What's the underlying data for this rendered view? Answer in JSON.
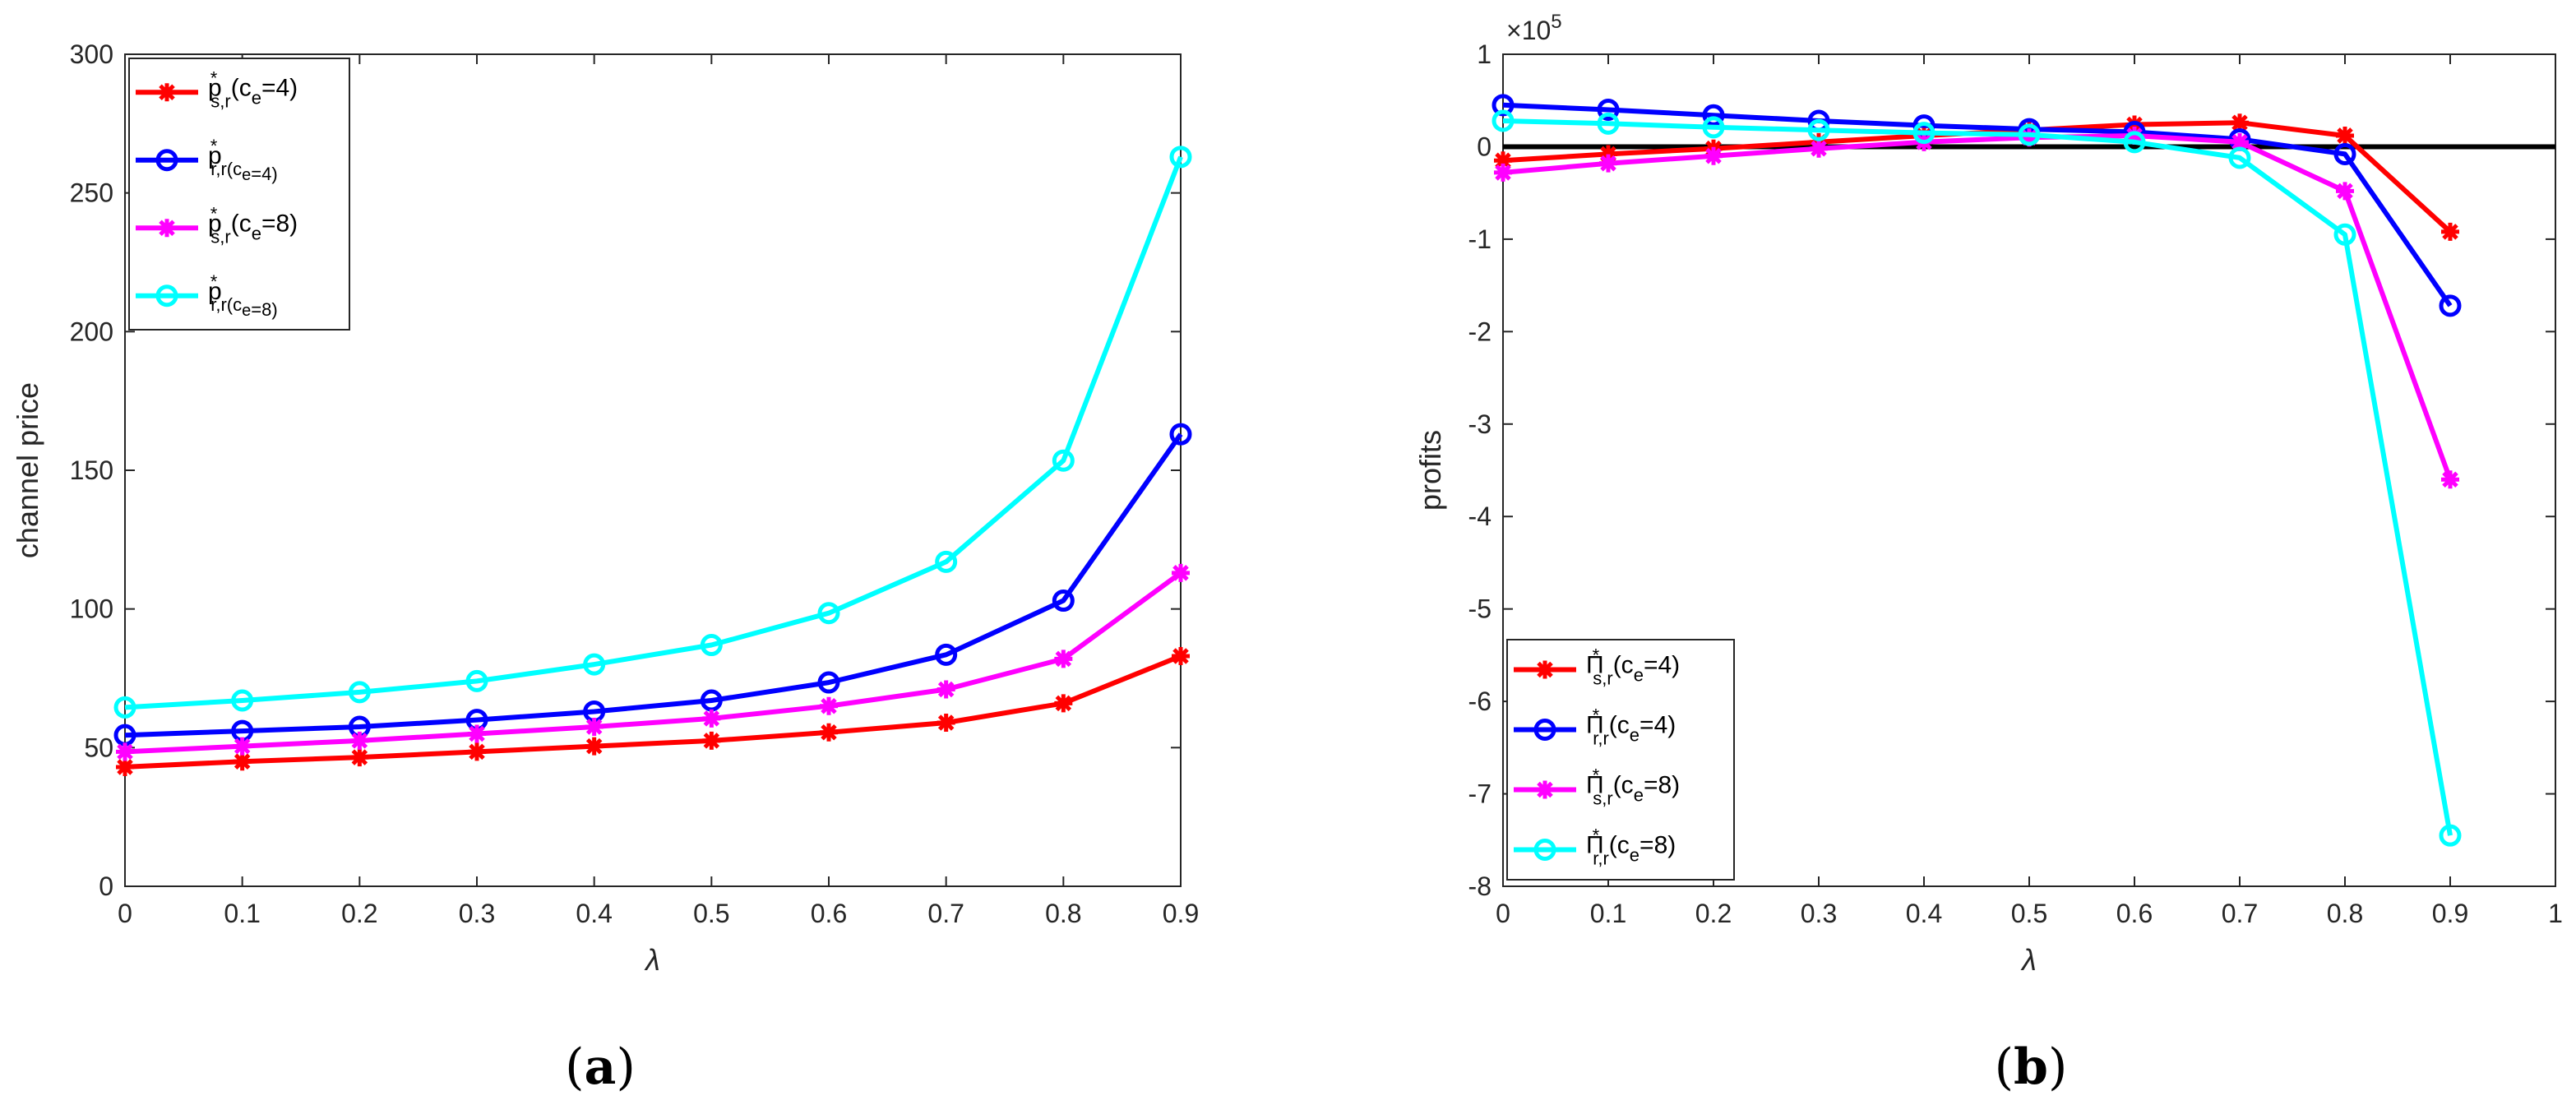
{
  "chart_data": [
    {
      "type": "line",
      "panel": "(a)",
      "panel_parts": {
        "open": "(",
        "letter": "a",
        "close": ")"
      },
      "xlabel": "λ",
      "ylabel": "channel price",
      "x": [
        0,
        0.1,
        0.2,
        0.3,
        0.4,
        0.5,
        0.6,
        0.7,
        0.8,
        0.9
      ],
      "xlim": [
        0,
        0.9
      ],
      "ylim": [
        0,
        300
      ],
      "xticks": [
        "0",
        "0.1",
        "0.2",
        "0.3",
        "0.4",
        "0.5",
        "0.6",
        "0.7",
        "0.8",
        "0.9"
      ],
      "yticks": [
        "0",
        "50",
        "100",
        "150",
        "200",
        "250",
        "300"
      ],
      "legend_location": "top-left",
      "series": [
        {
          "name": "p*s,r(ce=4)",
          "label": {
            "sym": "p",
            "sup": "*",
            "sub": "s,r",
            "rest": "(c",
            "sub2": "e",
            "tail": "=4)"
          },
          "color": "#ff0000",
          "marker": "asterisk",
          "values": [
            43,
            45,
            46.5,
            48.5,
            50.5,
            52.5,
            55.5,
            59,
            66,
            83
          ]
        },
        {
          "name": "p*r,r(ce=4)",
          "label": {
            "sym": "p",
            "sup": "*",
            "sub": "r,r(c",
            "sub2": "e",
            "tail": "=4)"
          },
          "color": "#0000ff",
          "marker": "circle",
          "values": [
            54.5,
            56,
            57.5,
            60,
            63,
            67,
            73.5,
            83.5,
            103,
            163
          ]
        },
        {
          "name": "p*s,r(ce=8)",
          "label": {
            "sym": "p",
            "sup": "*",
            "sub": "s,r",
            "rest": "(c",
            "sub2": "e",
            "tail": "=8)"
          },
          "color": "#ff00ff",
          "marker": "asterisk",
          "values": [
            48.5,
            50.5,
            52.5,
            55,
            57.5,
            60.5,
            65,
            71,
            82,
            113
          ]
        },
        {
          "name": "p*r,r(ce=8)",
          "label": {
            "sym": "p",
            "sup": "*",
            "sub": "r,r(c",
            "sub2": "e",
            "tail": "=8)"
          },
          "color": "#00ffff",
          "marker": "circle",
          "values": [
            64.5,
            67,
            70,
            74,
            80,
            87,
            98.5,
            117,
            153.5,
            263
          ]
        }
      ]
    },
    {
      "type": "line",
      "panel": "(b)",
      "panel_parts": {
        "open": "(",
        "letter": "b",
        "close": ")"
      },
      "xlabel": "λ",
      "ylabel": "profits",
      "multiplier": {
        "base": "×10",
        "exp": "5"
      },
      "x": [
        0,
        0.1,
        0.2,
        0.3,
        0.4,
        0.5,
        0.6,
        0.7,
        0.8,
        0.9
      ],
      "xlim": [
        0,
        1
      ],
      "ylim": [
        -8,
        1
      ],
      "xticks": [
        "0",
        "0.1",
        "0.2",
        "0.3",
        "0.4",
        "0.5",
        "0.6",
        "0.7",
        "0.8",
        "0.9",
        "1"
      ],
      "yticks": [
        "-8",
        "-7",
        "-6",
        "-5",
        "-4",
        "-3",
        "-2",
        "-1",
        "0",
        "1"
      ],
      "reference_line": {
        "y": 0,
        "color": "#000000"
      },
      "legend_location": "bottom-left",
      "series": [
        {
          "name": "Π*s,r(ce=4)",
          "label": {
            "sym": "Π",
            "sup": "*",
            "sub": "s,r",
            "rest": "(c",
            "sub2": "e",
            "tail": "=4)"
          },
          "color": "#ff0000",
          "marker": "asterisk",
          "values": [
            -0.15,
            -0.08,
            -0.02,
            0.05,
            0.12,
            0.18,
            0.24,
            0.26,
            0.12,
            -0.92
          ]
        },
        {
          "name": "Π*r,r(ce=4)",
          "label": {
            "sym": "Π",
            "sup": "*",
            "sub": "r,r",
            "rest": "(c",
            "sub2": "e",
            "tail": "=4)"
          },
          "color": "#0000ff",
          "marker": "circle",
          "values": [
            0.45,
            0.4,
            0.34,
            0.28,
            0.23,
            0.19,
            0.16,
            0.08,
            -0.08,
            -1.72
          ]
        },
        {
          "name": "Π*s,r(ce=8)",
          "label": {
            "sym": "Π",
            "sup": "*",
            "sub": "s,r",
            "rest": "(c",
            "sub2": "e",
            "tail": "=8)"
          },
          "color": "#ff00ff",
          "marker": "asterisk",
          "values": [
            -0.28,
            -0.18,
            -0.1,
            -0.02,
            0.05,
            0.1,
            0.12,
            0.05,
            -0.48,
            -3.6
          ]
        },
        {
          "name": "Π*r,r(ce=8)",
          "label": {
            "sym": "Π",
            "sup": "*",
            "sub": "r,r",
            "rest": "(c",
            "sub2": "e",
            "tail": "=8)"
          },
          "color": "#00ffff",
          "marker": "circle",
          "values": [
            0.28,
            0.25,
            0.21,
            0.18,
            0.15,
            0.13,
            0.05,
            -0.12,
            -0.95,
            -7.45
          ]
        }
      ]
    }
  ]
}
